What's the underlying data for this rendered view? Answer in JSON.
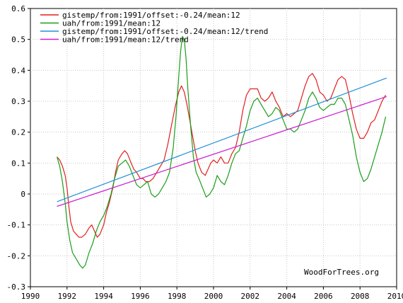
{
  "chart_data": {
    "type": "line",
    "title": "",
    "xlabel": "",
    "ylabel": "",
    "xlim": [
      1990,
      2010
    ],
    "ylim": [
      -0.3,
      0.6
    ],
    "x_ticks": [
      "1990",
      "1992",
      "1994",
      "1996",
      "1998",
      "2000",
      "2002",
      "2004",
      "2006",
      "2008",
      "2010"
    ],
    "y_ticks": [
      "-0.3",
      "-0.2",
      "-0.1",
      "0",
      "0.1",
      "0.2",
      "0.3",
      "0.4",
      "0.5",
      "0.6"
    ],
    "grid": true,
    "legend_position": "top-left",
    "credit": "WoodForTrees.org",
    "series": [
      {
        "name": "gistemp/from:1991/offset:-0.24/mean:12",
        "color": "#e0201c",
        "x": [
          1991.45,
          1991.6,
          1991.75,
          1991.9,
          1992.0,
          1992.1,
          1992.2,
          1992.35,
          1992.5,
          1992.65,
          1992.8,
          1993.0,
          1993.2,
          1993.35,
          1993.5,
          1993.65,
          1993.8,
          1994.0,
          1994.15,
          1994.3,
          1994.5,
          1994.65,
          1994.8,
          1995.0,
          1995.15,
          1995.3,
          1995.5,
          1995.65,
          1995.8,
          1996.0,
          1996.15,
          1996.3,
          1996.5,
          1996.7,
          1996.9,
          1997.1,
          1997.3,
          1997.5,
          1997.7,
          1997.9,
          1998.1,
          1998.25,
          1998.4,
          1998.55,
          1998.7,
          1998.85,
          1999.0,
          1999.15,
          1999.35,
          1999.55,
          1999.7,
          1999.85,
          2000.0,
          2000.2,
          2000.4,
          2000.6,
          2000.8,
          2001.0,
          2001.2,
          2001.4,
          2001.6,
          2001.8,
          2002.0,
          2002.2,
          2002.4,
          2002.6,
          2002.8,
          2003.0,
          2003.2,
          2003.4,
          2003.6,
          2003.8,
          2004.0,
          2004.2,
          2004.4,
          2004.6,
          2004.8,
          2005.0,
          2005.2,
          2005.4,
          2005.6,
          2005.8,
          2006.0,
          2006.2,
          2006.4,
          2006.6,
          2006.8,
          2007.0,
          2007.2,
          2007.4,
          2007.6,
          2007.8,
          2008.0,
          2008.2,
          2008.4,
          2008.6,
          2008.8,
          2009.0,
          2009.2,
          2009.4
        ],
        "values": [
          0.12,
          0.11,
          0.09,
          0.06,
          0.02,
          -0.04,
          -0.09,
          -0.12,
          -0.13,
          -0.14,
          -0.14,
          -0.13,
          -0.11,
          -0.1,
          -0.12,
          -0.14,
          -0.13,
          -0.1,
          -0.06,
          -0.03,
          0.02,
          0.07,
          0.11,
          0.13,
          0.14,
          0.13,
          0.1,
          0.08,
          0.07,
          0.05,
          0.05,
          0.04,
          0.04,
          0.05,
          0.07,
          0.09,
          0.11,
          0.16,
          0.22,
          0.28,
          0.33,
          0.35,
          0.33,
          0.29,
          0.24,
          0.19,
          0.14,
          0.1,
          0.07,
          0.06,
          0.08,
          0.1,
          0.11,
          0.1,
          0.12,
          0.1,
          0.1,
          0.13,
          0.15,
          0.2,
          0.27,
          0.32,
          0.34,
          0.34,
          0.34,
          0.31,
          0.3,
          0.31,
          0.33,
          0.3,
          0.28,
          0.25,
          0.26,
          0.25,
          0.26,
          0.27,
          0.31,
          0.35,
          0.38,
          0.39,
          0.37,
          0.33,
          0.32,
          0.3,
          0.31,
          0.34,
          0.37,
          0.38,
          0.37,
          0.32,
          0.26,
          0.21,
          0.18,
          0.18,
          0.2,
          0.23,
          0.24,
          0.27,
          0.3,
          0.32
        ]
      },
      {
        "name": "uah/from:1991/mean:12",
        "color": "#1a9e1a",
        "x": [
          1991.45,
          1991.6,
          1991.75,
          1991.9,
          1992.0,
          1992.15,
          1992.3,
          1992.5,
          1992.7,
          1992.85,
          1993.0,
          1993.2,
          1993.4,
          1993.6,
          1993.8,
          1994.0,
          1994.2,
          1994.4,
          1994.6,
          1994.8,
          1995.0,
          1995.2,
          1995.4,
          1995.6,
          1995.8,
          1996.0,
          1996.2,
          1996.4,
          1996.6,
          1996.8,
          1997.0,
          1997.2,
          1997.4,
          1997.6,
          1997.8,
          1997.95,
          1998.1,
          1998.2,
          1998.3,
          1998.4,
          1998.5,
          1998.6,
          1998.75,
          1998.9,
          1999.05,
          1999.2,
          1999.4,
          1999.6,
          1999.8,
          2000.0,
          2000.2,
          2000.4,
          2000.6,
          2000.8,
          2001.0,
          2001.2,
          2001.4,
          2001.6,
          2001.8,
          2002.0,
          2002.2,
          2002.4,
          2002.6,
          2002.8,
          2003.0,
          2003.2,
          2003.4,
          2003.6,
          2003.8,
          2004.0,
          2004.2,
          2004.4,
          2004.6,
          2004.8,
          2005.0,
          2005.2,
          2005.4,
          2005.6,
          2005.8,
          2006.0,
          2006.2,
          2006.4,
          2006.6,
          2006.8,
          2007.0,
          2007.2,
          2007.4,
          2007.6,
          2007.8,
          2008.0,
          2008.2,
          2008.4,
          2008.6,
          2008.8,
          2009.0,
          2009.2,
          2009.4
        ],
        "values": [
          0.12,
          0.09,
          0.04,
          -0.03,
          -0.09,
          -0.15,
          -0.19,
          -0.21,
          -0.23,
          -0.24,
          -0.23,
          -0.19,
          -0.16,
          -0.12,
          -0.09,
          -0.07,
          -0.04,
          0.0,
          0.05,
          0.09,
          0.1,
          0.11,
          0.09,
          0.06,
          0.03,
          0.02,
          0.03,
          0.04,
          0.0,
          -0.01,
          0.0,
          0.02,
          0.04,
          0.07,
          0.15,
          0.25,
          0.38,
          0.46,
          0.51,
          0.5,
          0.44,
          0.34,
          0.22,
          0.12,
          0.07,
          0.05,
          0.02,
          -0.01,
          0.0,
          0.02,
          0.06,
          0.04,
          0.03,
          0.06,
          0.1,
          0.13,
          0.14,
          0.18,
          0.22,
          0.27,
          0.3,
          0.31,
          0.29,
          0.27,
          0.25,
          0.26,
          0.28,
          0.27,
          0.24,
          0.21,
          0.21,
          0.2,
          0.21,
          0.24,
          0.27,
          0.31,
          0.33,
          0.31,
          0.28,
          0.27,
          0.28,
          0.29,
          0.29,
          0.31,
          0.31,
          0.29,
          0.24,
          0.19,
          0.12,
          0.07,
          0.04,
          0.05,
          0.08,
          0.12,
          0.16,
          0.2,
          0.25
        ]
      },
      {
        "name": "gistemp/from:1991/offset:-0.24/mean:12/trend",
        "color": "#1e90d8",
        "x": [
          1991.45,
          2009.45
        ],
        "values": [
          -0.025,
          0.375
        ]
      },
      {
        "name": "uah/from:1991/mean:12/trend",
        "color": "#cc1fcc",
        "x": [
          1991.45,
          2009.45
        ],
        "values": [
          -0.04,
          0.315
        ]
      }
    ]
  }
}
